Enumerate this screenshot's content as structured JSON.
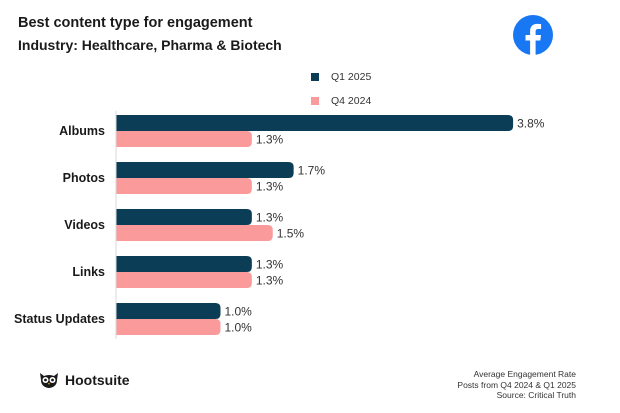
{
  "header": {
    "title": "Best content type for engagement",
    "subtitle": "Industry: Healthcare, Pharma & Biotech"
  },
  "brand": {
    "facebook_icon": "facebook-icon",
    "hootsuite_logo_text": "Hootsuite"
  },
  "colors": {
    "q1": "#0b3d56",
    "q4": "#fb9a9a",
    "fb": "#1877f2"
  },
  "chart_data": {
    "type": "bar",
    "orientation": "horizontal",
    "title": "Best content type for engagement",
    "subtitle": "Industry: Healthcare, Pharma & Biotech",
    "categories": [
      "Albums",
      "Photos",
      "Videos",
      "Links",
      "Status Updates"
    ],
    "series": [
      {
        "name": "Q1 2025",
        "values": [
          3.8,
          1.7,
          1.3,
          1.3,
          1.0
        ],
        "labels": [
          "3.8%",
          "1.7%",
          "1.3%",
          "1.3%",
          "1.0%"
        ]
      },
      {
        "name": "Q4 2024",
        "values": [
          1.3,
          1.3,
          1.5,
          1.3,
          1.0
        ],
        "labels": [
          "1.3%",
          "1.3%",
          "1.5%",
          "1.3%",
          "1.0%"
        ]
      }
    ],
    "xlim": [
      0,
      4.5
    ],
    "grid": false,
    "legend": "top-center"
  },
  "footer": {
    "line1": "Average Engagement Rate",
    "line2": "Posts from Q4 2024 & Q1 2025",
    "line3": "Source: Critical Truth"
  }
}
